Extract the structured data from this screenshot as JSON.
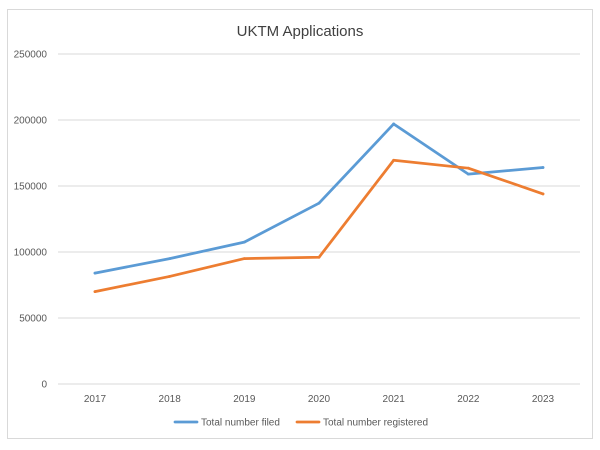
{
  "chart_data": {
    "type": "line",
    "title": "UKTM Applications",
    "xlabel": "",
    "ylabel": "",
    "categories": [
      "2017",
      "2018",
      "2019",
      "2020",
      "2021",
      "2022",
      "2023"
    ],
    "ylim": [
      0,
      250000
    ],
    "yticks": [
      0,
      50000,
      100000,
      150000,
      200000,
      250000
    ],
    "ytick_labels": [
      "0",
      "50000",
      "100000",
      "150000",
      "200000",
      "250000"
    ],
    "grid": true,
    "legend_position": "bottom",
    "series": [
      {
        "name": "Total number filed",
        "color": "#5b9bd5",
        "values": [
          84000,
          95000,
          107500,
          137000,
          197000,
          159000,
          164000
        ]
      },
      {
        "name": "Total number registered",
        "color": "#ed7d31",
        "values": [
          70000,
          81500,
          95000,
          96000,
          169500,
          163500,
          144000
        ]
      }
    ]
  }
}
